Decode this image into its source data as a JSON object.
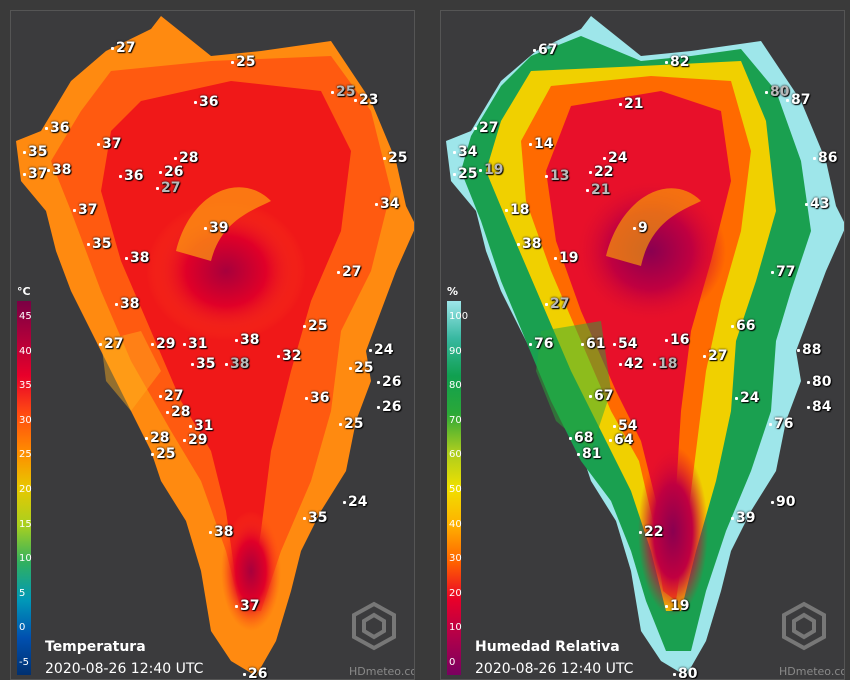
{
  "temperature_panel": {
    "title": "Temperatura",
    "timestamp": "2020-08-26 12:40 UTC",
    "unit": "°C",
    "legend_ticks": [
      "45",
      "40",
      "35",
      "30",
      "25",
      "20",
      "15",
      "10",
      "5",
      "0",
      "-5"
    ],
    "legend_colors": [
      "#7a0044",
      "#b0003a",
      "#e8002a",
      "#ff4a12",
      "#ff8a00",
      "#e8c800",
      "#a8d020",
      "#30b060",
      "#0098b8",
      "#0050b0",
      "#003070"
    ],
    "watermark": "HDmeteo.com",
    "stations": [
      {
        "v": "27",
        "gray": false
      },
      {
        "v": "25",
        "gray": false
      },
      {
        "v": "36",
        "gray": false
      },
      {
        "v": "25",
        "gray": true
      },
      {
        "v": "23",
        "gray": false
      },
      {
        "v": "36",
        "gray": false
      },
      {
        "v": "37",
        "gray": false
      },
      {
        "v": "35",
        "gray": false
      },
      {
        "v": "37",
        "gray": false
      },
      {
        "v": "38",
        "gray": false
      },
      {
        "v": "36",
        "gray": false
      },
      {
        "v": "28",
        "gray": false
      },
      {
        "v": "26",
        "gray": false
      },
      {
        "v": "27",
        "gray": true
      },
      {
        "v": "25",
        "gray": false
      },
      {
        "v": "37",
        "gray": false
      },
      {
        "v": "34",
        "gray": false
      },
      {
        "v": "39",
        "gray": false
      },
      {
        "v": "35",
        "gray": false
      },
      {
        "v": "38",
        "gray": false
      },
      {
        "v": "27",
        "gray": false
      },
      {
        "v": "38",
        "gray": false
      },
      {
        "v": "25",
        "gray": false
      },
      {
        "v": "27",
        "gray": false
      },
      {
        "v": "29",
        "gray": false
      },
      {
        "v": "31",
        "gray": false
      },
      {
        "v": "38",
        "gray": false
      },
      {
        "v": "35",
        "gray": false
      },
      {
        "v": "38",
        "gray": true
      },
      {
        "v": "32",
        "gray": false
      },
      {
        "v": "24",
        "gray": false
      },
      {
        "v": "25",
        "gray": false
      },
      {
        "v": "26",
        "gray": false
      },
      {
        "v": "27",
        "gray": false
      },
      {
        "v": "28",
        "gray": false
      },
      {
        "v": "36",
        "gray": false
      },
      {
        "v": "26",
        "gray": false
      },
      {
        "v": "31",
        "gray": false
      },
      {
        "v": "25",
        "gray": false
      },
      {
        "v": "28",
        "gray": false
      },
      {
        "v": "29",
        "gray": false
      },
      {
        "v": "25",
        "gray": false
      },
      {
        "v": "24",
        "gray": false
      },
      {
        "v": "35",
        "gray": false
      },
      {
        "v": "38",
        "gray": false
      },
      {
        "v": "37",
        "gray": false
      },
      {
        "v": "26",
        "gray": false
      }
    ]
  },
  "humidity_panel": {
    "title": "Humedad Relativa",
    "timestamp": "2020-08-26 12:40 UTC",
    "unit": "%",
    "legend_ticks": [
      "100",
      "90",
      "80",
      "70",
      "60",
      "50",
      "40",
      "30",
      "20",
      "10",
      "0"
    ],
    "legend_colors": [
      "#9ee6ea",
      "#38b8a0",
      "#10a050",
      "#2aa838",
      "#a8cc20",
      "#f0e000",
      "#ffb000",
      "#ff6000",
      "#e8002a",
      "#b0004a",
      "#7a0060"
    ],
    "watermark": "HDmeteo.com",
    "stations": [
      {
        "v": "67",
        "gray": false
      },
      {
        "v": "82",
        "gray": false
      },
      {
        "v": "80",
        "gray": true
      },
      {
        "v": "87",
        "gray": false
      },
      {
        "v": "21",
        "gray": false
      },
      {
        "v": "27",
        "gray": false
      },
      {
        "v": "14",
        "gray": false
      },
      {
        "v": "34",
        "gray": false
      },
      {
        "v": "19",
        "gray": true
      },
      {
        "v": "25",
        "gray": false
      },
      {
        "v": "24",
        "gray": false
      },
      {
        "v": "22",
        "gray": false
      },
      {
        "v": "13",
        "gray": true
      },
      {
        "v": "21",
        "gray": true
      },
      {
        "v": "86",
        "gray": false
      },
      {
        "v": "18",
        "gray": false
      },
      {
        "v": "43",
        "gray": false
      },
      {
        "v": "9",
        "gray": false
      },
      {
        "v": "38",
        "gray": false
      },
      {
        "v": "19",
        "gray": false
      },
      {
        "v": "77",
        "gray": false
      },
      {
        "v": "27",
        "gray": true
      },
      {
        "v": "66",
        "gray": false
      },
      {
        "v": "76",
        "gray": false
      },
      {
        "v": "61",
        "gray": false
      },
      {
        "v": "54",
        "gray": false
      },
      {
        "v": "16",
        "gray": false
      },
      {
        "v": "88",
        "gray": false
      },
      {
        "v": "42",
        "gray": false
      },
      {
        "v": "18",
        "gray": true
      },
      {
        "v": "27",
        "gray": false
      },
      {
        "v": "80",
        "gray": false
      },
      {
        "v": "67",
        "gray": false
      },
      {
        "v": "24",
        "gray": false
      },
      {
        "v": "84",
        "gray": false
      },
      {
        "v": "54",
        "gray": false
      },
      {
        "v": "76",
        "gray": false
      },
      {
        "v": "68",
        "gray": false
      },
      {
        "v": "64",
        "gray": false
      },
      {
        "v": "81",
        "gray": false
      },
      {
        "v": "90",
        "gray": false
      },
      {
        "v": "39",
        "gray": false
      },
      {
        "v": "22",
        "gray": false
      },
      {
        "v": "19",
        "gray": false
      },
      {
        "v": "80",
        "gray": false
      }
    ]
  }
}
